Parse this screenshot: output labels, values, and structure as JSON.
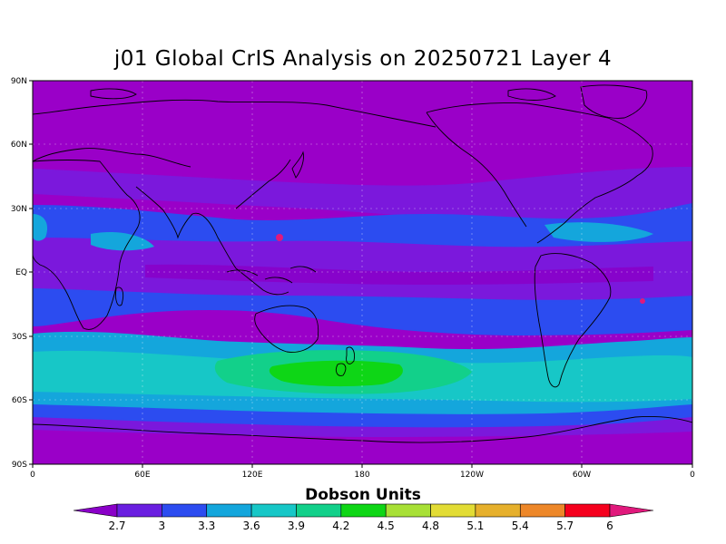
{
  "title": "j01 Global CrIS Analysis on 20250721 Layer 4",
  "lat_labels": [
    "90N",
    "60N",
    "30N",
    "EQ",
    "30S",
    "60S",
    "90S"
  ],
  "lon_labels": [
    "0",
    "60E",
    "120E",
    "180",
    "120W",
    "60W",
    "0"
  ],
  "colorbar": {
    "title": "Dobson Units",
    "tick_labels": [
      "2.7",
      "3",
      "3.3",
      "3.6",
      "3.9",
      "4.2",
      "4.5",
      "4.8",
      "5.1",
      "5.4",
      "5.7",
      "6"
    ],
    "colors": [
      "#8a00c8",
      "#6a1fe0",
      "#2c4cf0",
      "#13a6dc",
      "#17c7c7",
      "#12d08a",
      "#0ed616",
      "#a8e036",
      "#e2dc35",
      "#e6b02c",
      "#ed8729",
      "#f5001d",
      "#e0197c"
    ]
  },
  "map_colors": {
    "band_purple": "#9a00c8",
    "band_violet": "#7b18dc",
    "band_blue": "#2c4cf0",
    "band_cyan": "#14a6dc",
    "band_teal": "#17c7c7",
    "band_green": "#12d08a",
    "band_bright_green": "#0ed616",
    "pink_accent": "#e0197c"
  }
}
